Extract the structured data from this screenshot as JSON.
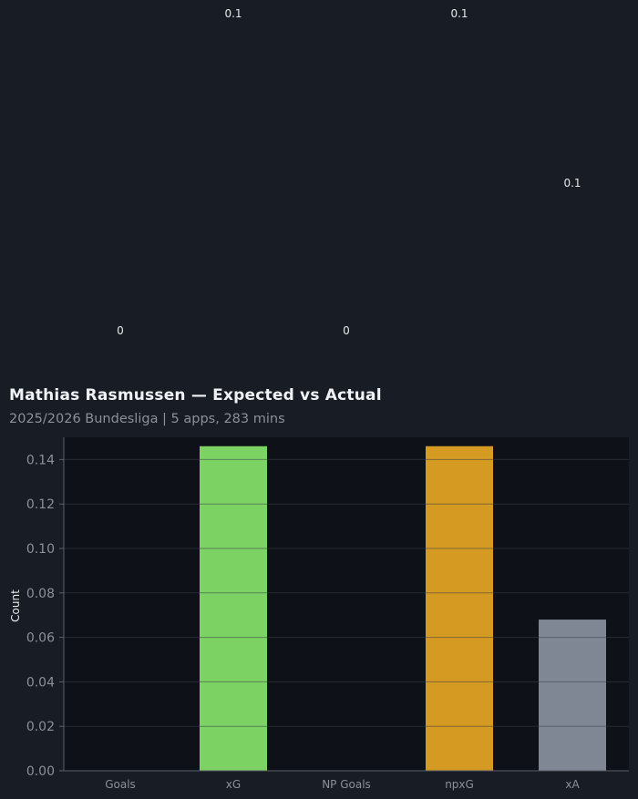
{
  "chart_data": {
    "type": "bar",
    "title": "Mathias Rasmussen — Expected vs Actual",
    "subtitle": "2025/2026 Bundesliga | 5 apps, 283 mins",
    "xlabel": "",
    "ylabel": "Count",
    "categories": [
      "Goals",
      "xG",
      "NP Goals",
      "npxG",
      "xA"
    ],
    "values": [
      0,
      0.146,
      0,
      0.146,
      0.068
    ],
    "value_labels": [
      "0",
      "0.1",
      "0",
      "0.1",
      "0.1"
    ],
    "bar_colors": [
      "#7cd364",
      "#7cd364",
      "#d49a22",
      "#d49a22",
      "#7f8794"
    ],
    "ylim": [
      0,
      0.15
    ],
    "yticks": [
      "0.00",
      "0.02",
      "0.04",
      "0.06",
      "0.08",
      "0.10",
      "0.12",
      "0.14"
    ],
    "grid": true
  },
  "colors": {
    "background": "#181c24",
    "plot_background": "#0e1118",
    "grid": "#3a3f4a",
    "axis": "#5a5f6a",
    "tick_text": "#8c9099"
  }
}
